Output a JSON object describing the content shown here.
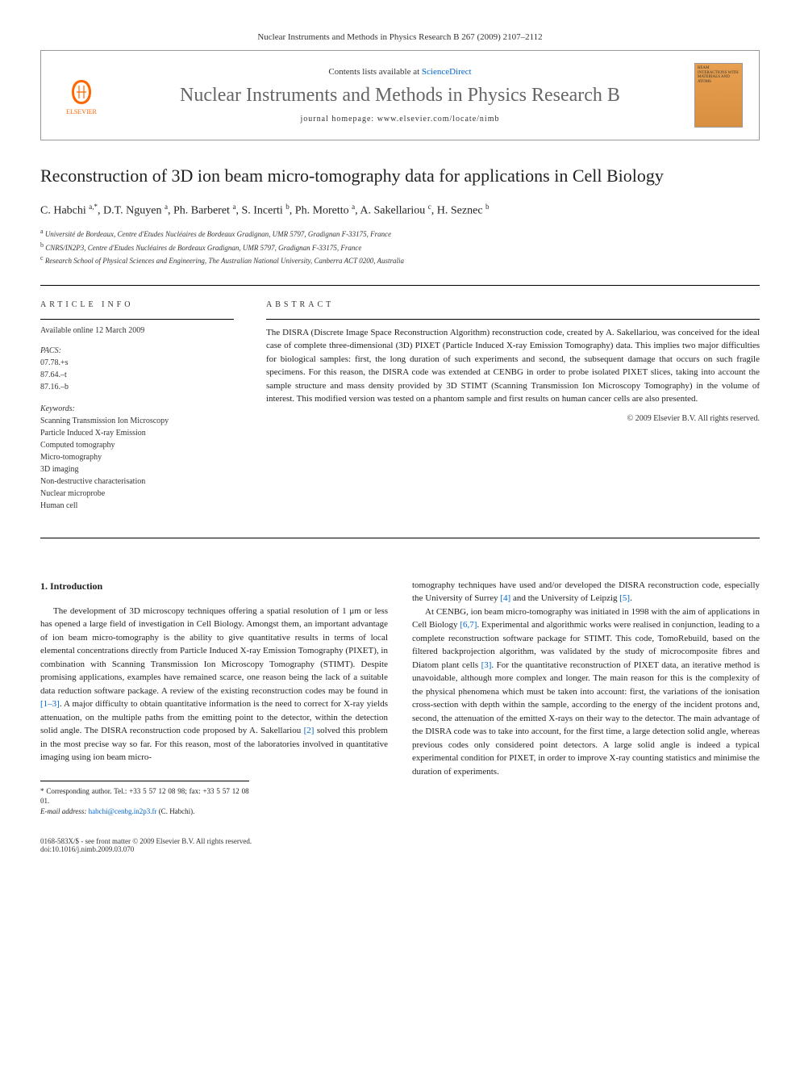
{
  "journal_header": "Nuclear Instruments and Methods in Physics Research B 267 (2009) 2107–2112",
  "contents_line_prefix": "Contents lists available at ",
  "contents_link": "ScienceDirect",
  "journal_name": "Nuclear Instruments and Methods in Physics Research B",
  "homepage_line": "journal homepage: www.elsevier.com/locate/nimb",
  "publisher_name": "ELSEVIER",
  "cover_text": "BEAM INTERACTIONS WITH MATERIALS AND ATOMS",
  "title": "Reconstruction of 3D ion beam micro-tomography data for applications in Cell Biology",
  "authors_html": "C. Habchi <sup>a,*</sup>, D.T. Nguyen <sup>a</sup>, Ph. Barberet <sup>a</sup>, S. Incerti <sup>b</sup>, Ph. Moretto <sup>a</sup>, A. Sakellariou <sup>c</sup>, H. Seznec <sup>b</sup>",
  "affiliations": [
    {
      "sup": "a",
      "text": "Université de Bordeaux, Centre d'Etudes Nucléaires de Bordeaux Gradignan, UMR 5797, Gradignan F-33175, France"
    },
    {
      "sup": "b",
      "text": "CNRS/IN2P3, Centre d'Etudes Nucléaires de Bordeaux Gradignan, UMR 5797, Gradignan F-33175, France"
    },
    {
      "sup": "c",
      "text": "Research School of Physical Sciences and Engineering, The Australian National University, Canberra ACT 0200, Australia"
    }
  ],
  "article_info_label": "ARTICLE INFO",
  "abstract_label": "ABSTRACT",
  "available_online": "Available online 12 March 2009",
  "pacs_label": "PACS:",
  "pacs_items": "07.78.+s\n87.64.–t\n87.16.–b",
  "keywords_label": "Keywords:",
  "keywords": "Scanning Transmission Ion Microscopy\nParticle Induced X-ray Emission\nComputed tomography\nMicro-tomography\n3D imaging\nNon-destructive characterisation\nNuclear microprobe\nHuman cell",
  "abstract_text": "The DISRA (Discrete Image Space Reconstruction Algorithm) reconstruction code, created by A. Sakellariou, was conceived for the ideal case of complete three-dimensional (3D) PIXET (Particle Induced X-ray Emission Tomography) data. This implies two major difficulties for biological samples: first, the long duration of such experiments and second, the subsequent damage that occurs on such fragile specimens. For this reason, the DISRA code was extended at CENBG in order to probe isolated PIXET slices, taking into account the sample structure and mass density provided by 3D STIMT (Scanning Transmission Ion Microscopy Tomography) in the volume of interest. This modified version was tested on a phantom sample and first results on human cancer cells are also presented.",
  "abstract_copyright": "© 2009 Elsevier B.V. All rights reserved.",
  "section_1_heading": "1. Introduction",
  "body_col1_p1": "The development of 3D microscopy techniques offering a spatial resolution of 1 μm or less has opened a large field of investigation in Cell Biology. Amongst them, an important advantage of ion beam micro-tomography is the ability to give quantitative results in terms of local elemental concentrations directly from Particle Induced X-ray Emission Tomography (PIXET), in combination with Scanning Transmission Ion Microscopy Tomography (STIMT). Despite promising applications, examples have remained scarce, one reason being the lack of a suitable data reduction software package. A review of the existing reconstruction codes may be found in [1–3]. A major difficulty to obtain quantitative information is the need to correct for X-ray yields attenuation, on the multiple paths from the emitting point to the detector, within the detection solid angle. The DISRA reconstruction code proposed by A. Sakellariou [2] solved this problem in the most precise way so far. For this reason, most of the laboratories involved in quantitative imaging using ion beam micro-",
  "body_col2_p1": "tomography techniques have used and/or developed the DISRA reconstruction code, especially the University of Surrey [4] and the University of Leipzig [5].",
  "body_col2_p2": "At CENBG, ion beam micro-tomography was initiated in 1998 with the aim of applications in Cell Biology [6,7]. Experimental and algorithmic works were realised in conjunction, leading to a complete reconstruction software package for STIMT. This code, TomoRebuild, based on the filtered backprojection algorithm, was validated by the study of microcomposite fibres and Diatom plant cells [3]. For the quantitative reconstruction of PIXET data, an iterative method is unavoidable, although more complex and longer. The main reason for this is the complexity of the physical phenomena which must be taken into account: first, the variations of the ionisation cross-section with depth within the sample, according to the energy of the incident protons and, second, the attenuation of the emitted X-rays on their way to the detector. The main advantage of the DISRA code was to take into account, for the first time, a large detection solid angle, whereas previous codes only considered point detectors. A large solid angle is indeed a typical experimental condition for PIXET, in order to improve X-ray counting statistics and minimise the duration of experiments.",
  "footnote_corresponding": "* Corresponding author. Tel.: +33 5 57 12 08 98; fax: +33 5 57 12 08 01.",
  "footnote_email_label": "E-mail address: ",
  "footnote_email": "habchi@cenbg.in2p3.fr",
  "footnote_email_suffix": " (C. Habchi).",
  "bottom_left": "0168-583X/$ - see front matter © 2009 Elsevier B.V. All rights reserved.",
  "bottom_doi": "doi:10.1016/j.nimb.2009.03.070"
}
